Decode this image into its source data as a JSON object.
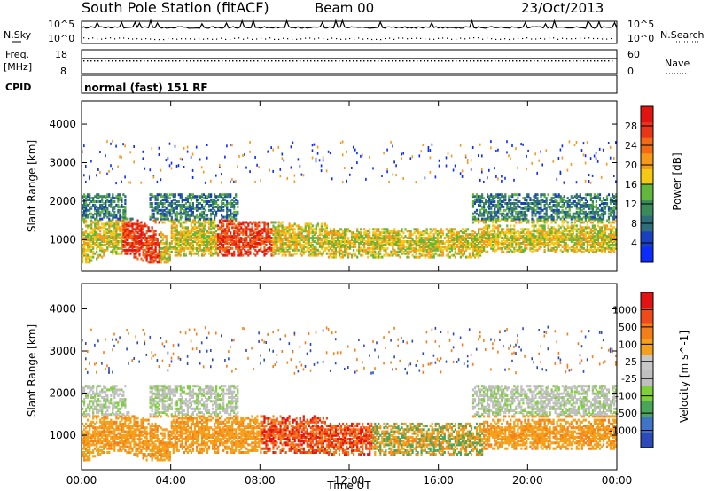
{
  "header": {
    "title": "South Pole Station (fitACF)",
    "beam": "Beam 00",
    "date": "23/Oct/2013"
  },
  "panels": {
    "nsky": {
      "left_label": "N.Sky",
      "right_label": "N.Search",
      "left_ticks": [
        "10^5",
        "10^0"
      ],
      "right_ticks": [
        "10^5",
        "10^0"
      ]
    },
    "freq": {
      "left_label_1": "Freq.",
      "left_label_2": "[MHz]",
      "left_ticks": [
        "18",
        "8"
      ],
      "right_label": "Nave",
      "right_ticks": [
        "60",
        "0"
      ]
    },
    "cpid": {
      "label": "CPID",
      "value": "normal (fast) 151 RF"
    }
  },
  "chart_data": [
    {
      "type": "heatmap",
      "name": "power",
      "ylabel": "Slant Range [km]",
      "xlabel": "Time UT",
      "x_ticks": [
        "00:00",
        "04:00",
        "08:00",
        "12:00",
        "16:00",
        "20:00",
        "00:00"
      ],
      "x_range_hours": [
        0,
        24
      ],
      "y_ticks": [
        "1000",
        "2000",
        "3000",
        "4000"
      ],
      "y_range_km": [
        180,
        4600
      ],
      "colorbar": {
        "label": "Power [dB]",
        "ticks": [
          "4",
          "8",
          "12",
          "16",
          "20",
          "24",
          "28"
        ],
        "colors": [
          "#0b2bff",
          "#1a3fbf",
          "#2f6d7a",
          "#3a8a5a",
          "#62b63b",
          "#f5c816",
          "#f79a1a",
          "#f26a16",
          "#e8361a",
          "#e2140f"
        ]
      }
    },
    {
      "type": "heatmap",
      "name": "velocity",
      "ylabel": "Slant Range [km]",
      "xlabel": "Time UT",
      "x_ticks": [
        "00:00",
        "04:00",
        "08:00",
        "12:00",
        "16:00",
        "20:00",
        "00:00"
      ],
      "x_range_hours": [
        0,
        24
      ],
      "y_ticks": [
        "1000",
        "2000",
        "3000",
        "4000"
      ],
      "y_range_km": [
        180,
        4600
      ],
      "colorbar": {
        "label": "Velocity [m s^-1]",
        "ticks": [
          "1000",
          "500",
          "100",
          "25",
          "-25",
          "-100",
          "-500",
          "-1000"
        ],
        "colors": [
          "#2c4bb8",
          "#3f74c9",
          "#4aa55a",
          "#7fcf3a",
          "#bfbfbf",
          "#c7c7c7",
          "#f5a01a",
          "#f47e1a",
          "#ef4a1a",
          "#e41212"
        ]
      }
    }
  ],
  "footer": {
    "xlabel": "Time UT"
  }
}
